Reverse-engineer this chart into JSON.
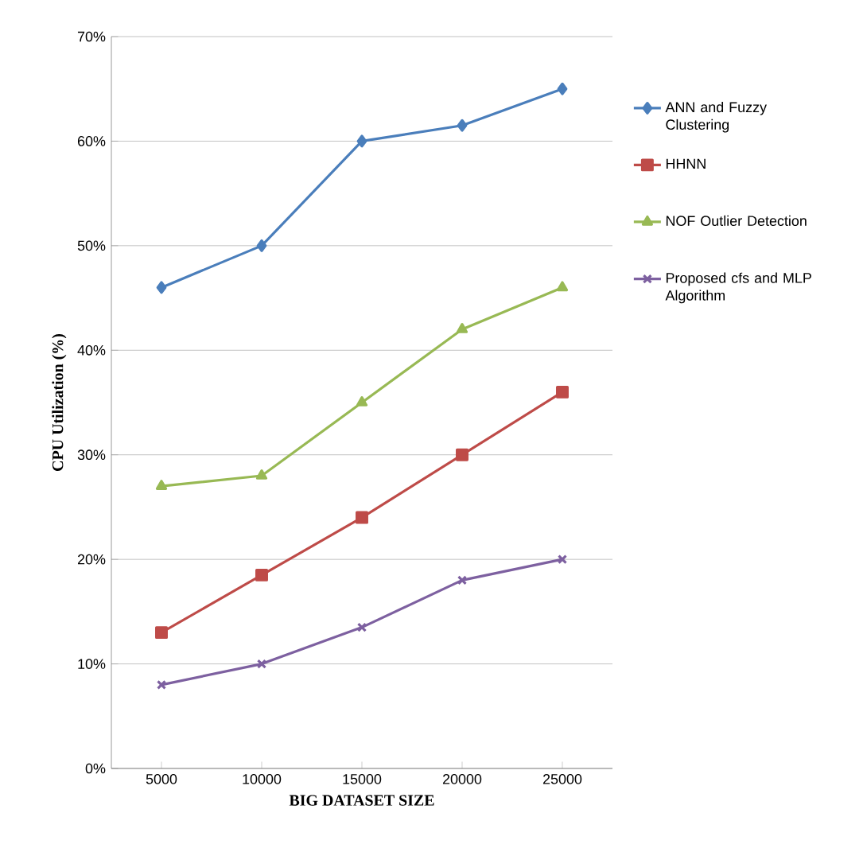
{
  "chart_data": {
    "type": "line",
    "xlabel": "BIG DATASET SIZE",
    "ylabel": "CPU Utilization (%)",
    "categories": [
      "5000",
      "10000",
      "15000",
      "20000",
      "25000"
    ],
    "series": [
      {
        "name": "ANN and Fuzzy Clustering",
        "color": "#4a7ebb",
        "marker": "diamond",
        "values": [
          46,
          50,
          60,
          61.5,
          65
        ]
      },
      {
        "name": "HHNN",
        "color": "#be4b48",
        "marker": "square",
        "values": [
          13,
          18.5,
          24,
          30,
          36
        ]
      },
      {
        "name": "NOF Outlier Detection",
        "color": "#98b954",
        "marker": "triangle",
        "values": [
          27,
          28,
          35,
          42,
          46
        ]
      },
      {
        "name": "Proposed cfs and MLP Algorithm",
        "color": "#7d60a0",
        "marker": "cross",
        "values": [
          8,
          10,
          13.5,
          18,
          20
        ]
      }
    ],
    "ylim": [
      0,
      70
    ],
    "yticks": [
      {
        "value": 0,
        "label": "0%"
      },
      {
        "value": 10,
        "label": "10%"
      },
      {
        "value": 20,
        "label": "20%"
      },
      {
        "value": 30,
        "label": "30%"
      },
      {
        "value": 40,
        "label": "40%"
      },
      {
        "value": 50,
        "label": "50%"
      },
      {
        "value": 60,
        "label": "60%"
      },
      {
        "value": 70,
        "label": "70%"
      }
    ],
    "grid": "y",
    "legend": "right",
    "line_style": "solid"
  }
}
